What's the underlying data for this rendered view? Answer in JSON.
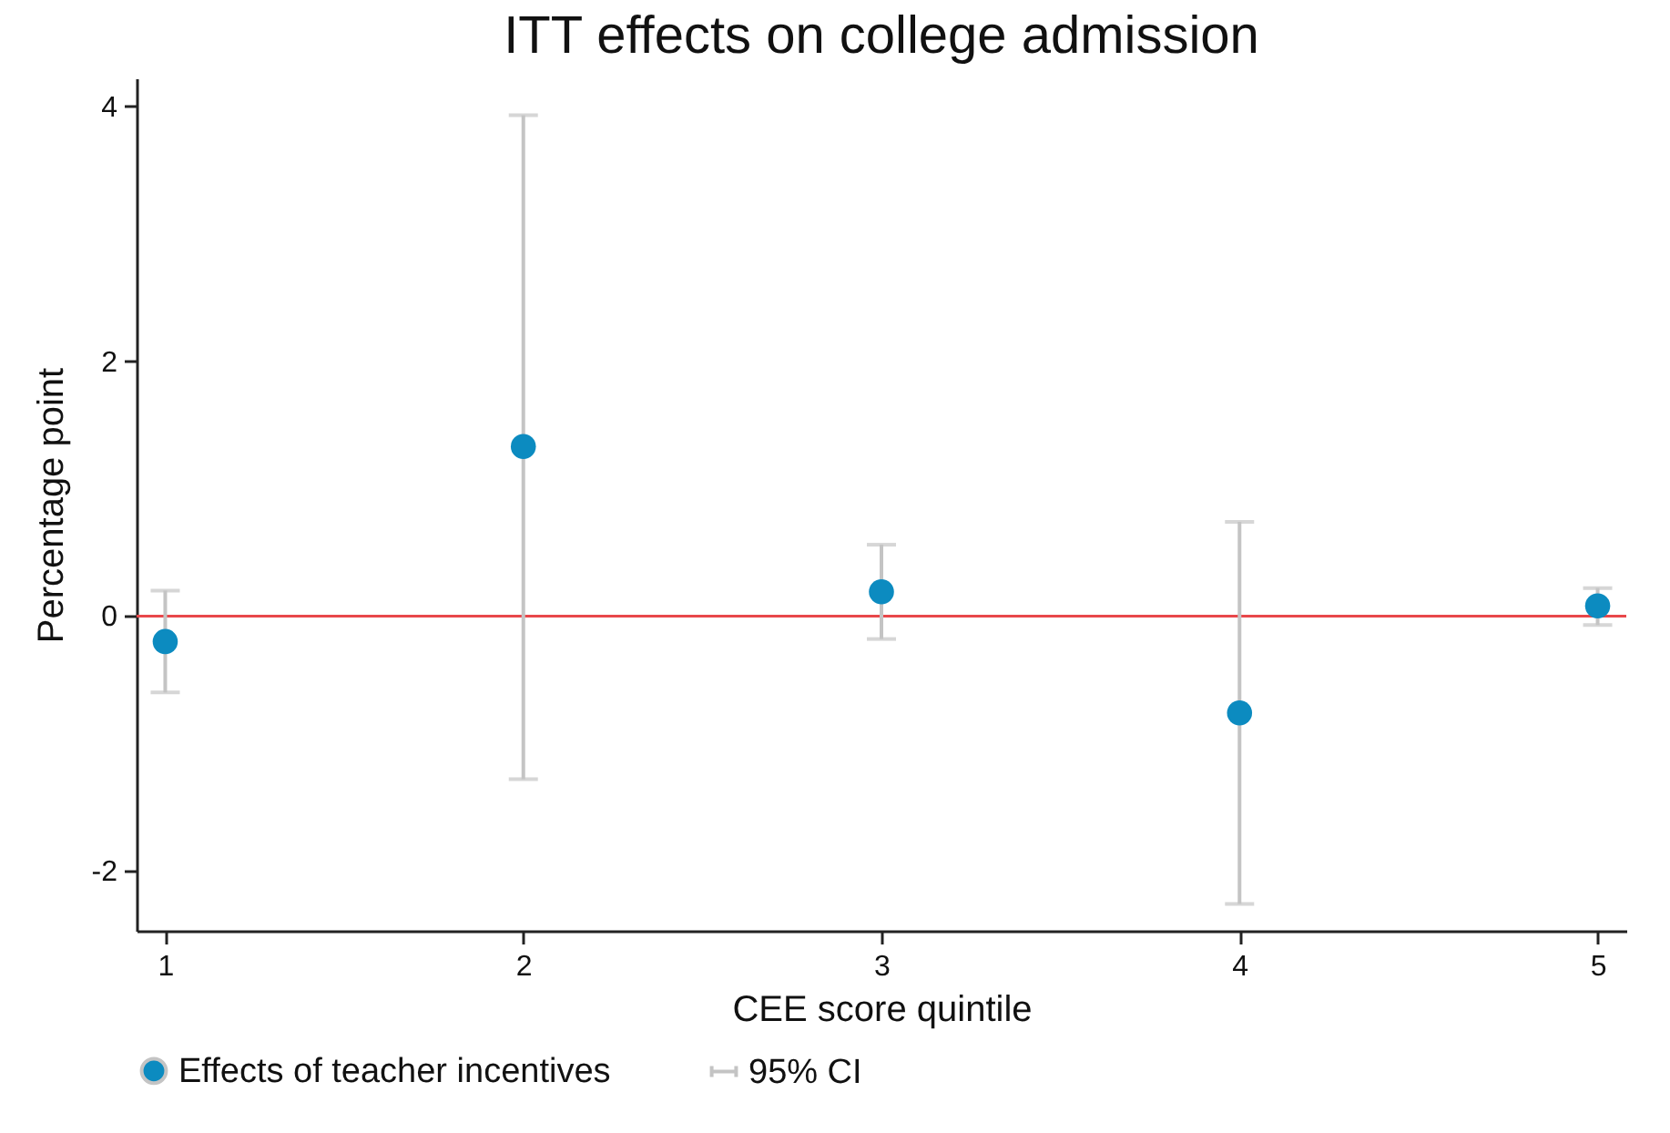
{
  "chart_data": {
    "type": "scatter",
    "title": "ITT effects on college admission",
    "xlabel": "CEE score quintile",
    "ylabel": "Percentage point",
    "x": [
      1,
      2,
      3,
      4,
      5
    ],
    "xlim": [
      0.92,
      5.08
    ],
    "xticks": [
      1,
      2,
      3,
      4,
      5
    ],
    "ylim": [
      -2.47,
      4.22
    ],
    "yticks": [
      -2,
      0,
      2,
      4
    ],
    "series": [
      {
        "name": "Effects of teacher incentives",
        "color": "#0c8bc0",
        "values": [
          -0.2,
          1.33,
          0.19,
          -0.76,
          0.08
        ],
        "errors": [
          [
            -0.6,
            0.2
          ],
          [
            -1.28,
            3.93
          ],
          [
            -0.18,
            0.56
          ],
          [
            -2.26,
            0.74
          ],
          [
            -0.07,
            0.22
          ]
        ]
      }
    ],
    "ref_lines": [
      {
        "axis": "y",
        "value": 0,
        "color": "#e8474a"
      }
    ],
    "annotations": [
      "95% CI"
    ],
    "marker": "circle",
    "legend": "bottom"
  }
}
